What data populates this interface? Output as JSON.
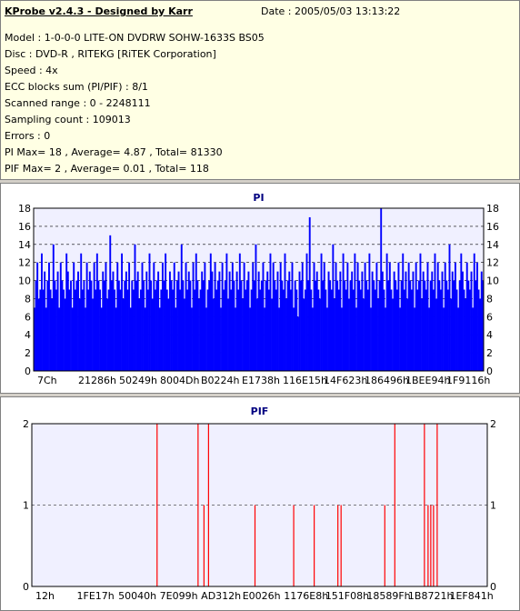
{
  "info": {
    "title": "KProbe v2.4.3 - Designed by Karr",
    "date": "Date : 2005/05/03 13:13:22",
    "lines": [
      "Model : 1-0-0-0 LITE-ON DVDRW SOHW-1633S BS05",
      "Disc : DVD-R , RITEKG [RiTEK Corporation]",
      "Speed : 4x",
      "ECC blocks sum (PI/PIF) : 8/1",
      "Scanned range : 0 - 2248111",
      "Sampling count : 109013",
      "Errors : 0",
      "PI Max= 18 , Average= 4.87 , Total= 81330",
      "PIF Max= 2 , Average= 0.01 , Total= 118"
    ]
  },
  "colors": {
    "pi_fill": "#0000ff",
    "pif_line": "#ff0000",
    "plot_bg": "#f0f0ff",
    "grid": "#000000",
    "title": "#000080",
    "info_bg": "#ffffe4"
  },
  "chart_data": [
    {
      "type": "bar",
      "title": "PI",
      "ylim": [
        0,
        18
      ],
      "yticks": [
        0,
        2,
        4,
        6,
        8,
        10,
        12,
        14,
        16,
        18
      ],
      "xtick_labels": [
        "7Ch",
        "21286h",
        "50249h",
        "8004Dh",
        "B0224h",
        "E1738h",
        "116E15h",
        "14F623h",
        "186496h",
        "1BEE94h",
        "1F9116h"
      ],
      "grid": "dashed horizontal",
      "series": [
        {
          "values": [
            7,
            10,
            12,
            8,
            9,
            13,
            9,
            11,
            7,
            10,
            12,
            9,
            8,
            14,
            10,
            9,
            11,
            7,
            12,
            10,
            9,
            8,
            13,
            11,
            9,
            10,
            7,
            12,
            9,
            10,
            11,
            8,
            13,
            9,
            10,
            7,
            12,
            9,
            11,
            10,
            8,
            12,
            9,
            13,
            10,
            9,
            7,
            11,
            10,
            12,
            8,
            9,
            15,
            10,
            11,
            9,
            7,
            12,
            10,
            9,
            13,
            8,
            10,
            11,
            9,
            12,
            7,
            10,
            9,
            14,
            10,
            11,
            8,
            9,
            12,
            10,
            7,
            11,
            9,
            13,
            10,
            8,
            12,
            9,
            10,
            11,
            7,
            9,
            12,
            10,
            13,
            9,
            8,
            11,
            10,
            9,
            12,
            7,
            10,
            11,
            9,
            14,
            10,
            8,
            12,
            9,
            11,
            10,
            7,
            12,
            9,
            13,
            10,
            8,
            9,
            11,
            10,
            12,
            7,
            9,
            10,
            13,
            11,
            8,
            12,
            9,
            10,
            11,
            7,
            12,
            9,
            10,
            13,
            8,
            11,
            9,
            12,
            10,
            7,
            11,
            9,
            13,
            10,
            8,
            12,
            9,
            10,
            11,
            7,
            9,
            12,
            10,
            14,
            8,
            11,
            9,
            10,
            12,
            7,
            10,
            11,
            9,
            13,
            8,
            12,
            10,
            9,
            11,
            7,
            12,
            10,
            9,
            13,
            8,
            10,
            11,
            9,
            12,
            7,
            10,
            9,
            6,
            11,
            10,
            12,
            8,
            9,
            13,
            10,
            17,
            9,
            7,
            12,
            10,
            11,
            9,
            8,
            13,
            10,
            12,
            9,
            7,
            11,
            10,
            9,
            14,
            8,
            12,
            10,
            9,
            11,
            7,
            13,
            10,
            9,
            12,
            8,
            10,
            11,
            9,
            13,
            7,
            12,
            10,
            9,
            11,
            8,
            12,
            10,
            9,
            13,
            7,
            11,
            10,
            9,
            12,
            8,
            10,
            18,
            11,
            9,
            7,
            13,
            10,
            12,
            9,
            8,
            11,
            10,
            9,
            12,
            7,
            10,
            13,
            9,
            11,
            8,
            12,
            10,
            9,
            11,
            7,
            12,
            9,
            10,
            13,
            8,
            11,
            10,
            9,
            12,
            7,
            10,
            11,
            9,
            13,
            8,
            12,
            10,
            9,
            11,
            7,
            12,
            10,
            9,
            14,
            8,
            11,
            10,
            12,
            9,
            7,
            10,
            13,
            11,
            9,
            8,
            12,
            10,
            9,
            11,
            7,
            13,
            10,
            12,
            9,
            8,
            11,
            10
          ]
        }
      ]
    },
    {
      "type": "bar",
      "title": "PIF",
      "ylim": [
        0,
        2
      ],
      "yticks": [
        0,
        1,
        2
      ],
      "xtick_labels": [
        "12h",
        "1FE17h",
        "50040h",
        "7E099h",
        "AD312h",
        "E0026h",
        "1176E8h",
        "151F08h",
        "18589Fh",
        "1B8721h",
        "1EF841h"
      ],
      "grid": "dashed horizontal",
      "series": [
        {
          "x_fraction": [
            0.275,
            0.365,
            0.378,
            0.388,
            0.49,
            0.575,
            0.62,
            0.672,
            0.679,
            0.775,
            0.797,
            0.862,
            0.87,
            0.876,
            0.882,
            0.89
          ],
          "values": [
            2,
            2,
            1,
            2,
            1,
            1,
            1,
            1,
            1,
            1,
            2,
            2,
            1,
            1,
            1,
            2
          ]
        }
      ]
    }
  ]
}
